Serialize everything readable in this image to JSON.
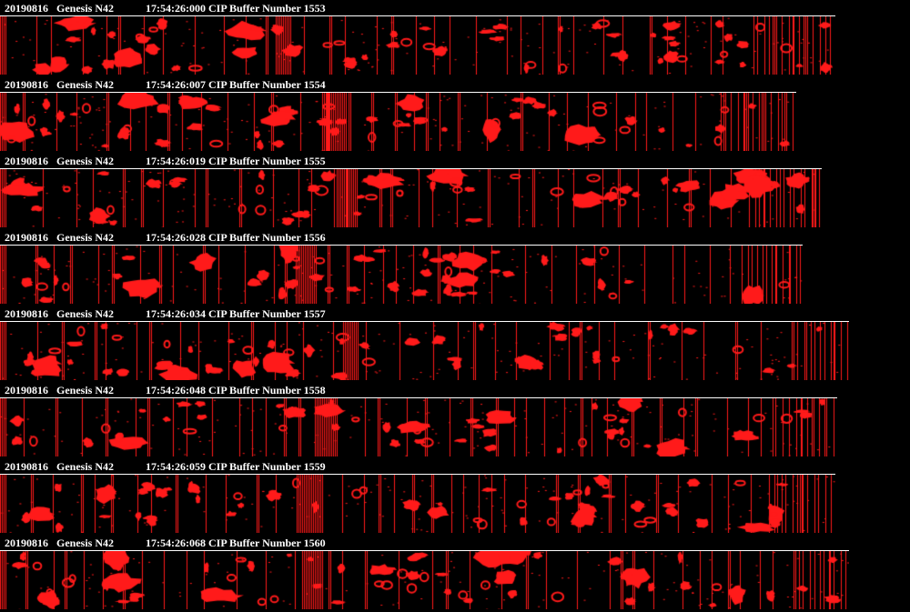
{
  "viewer": {
    "colors": {
      "background": "#000000",
      "header_text": "#ffffff",
      "particle": "#ff1a1a",
      "rule": "#ffffff"
    },
    "strips": [
      {
        "date": "20190816",
        "probe": "Genesis N42",
        "time": "17:54:26:000",
        "label": "CIP Buffer Number",
        "buffer": "1553"
      },
      {
        "date": "20190816",
        "probe": "Genesis N42",
        "time": "17:54:26:007",
        "label": "CIP Buffer Number",
        "buffer": "1554"
      },
      {
        "date": "20190816",
        "probe": "Genesis N42",
        "time": "17:54:26:019",
        "label": "CIP Buffer Number",
        "buffer": "1555"
      },
      {
        "date": "20190816",
        "probe": "Genesis N42",
        "time": "17:54:26:028",
        "label": "CIP Buffer Number",
        "buffer": "1556"
      },
      {
        "date": "20190816",
        "probe": "Genesis N42",
        "time": "17:54:26:034",
        "label": "CIP Buffer Number",
        "buffer": "1557"
      },
      {
        "date": "20190816",
        "probe": "Genesis N42",
        "time": "17:54:26:048",
        "label": "CIP Buffer Number",
        "buffer": "1558"
      },
      {
        "date": "20190816",
        "probe": "Genesis N42",
        "time": "17:54:26:059",
        "label": "CIP Buffer Number",
        "buffer": "1559"
      },
      {
        "date": "20190816",
        "probe": "Genesis N42",
        "time": "17:54:26:068",
        "label": "CIP Buffer Number",
        "buffer": "1560"
      }
    ]
  }
}
